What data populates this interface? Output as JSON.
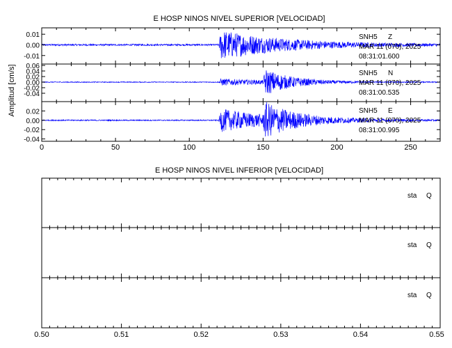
{
  "chart_data": [
    {
      "type": "line",
      "title": "E HOSP NINOS NIVEL SUPERIOR [VELOCIDAD]",
      "ylabel": "Amplitud [cm/s]",
      "xlabel": "",
      "xlim": [
        0,
        270
      ],
      "x_ticks": [
        0,
        50,
        100,
        150,
        200,
        250
      ],
      "x_tick_labels": [
        "0",
        "50",
        "100",
        "150",
        "200",
        "250"
      ],
      "line_color": "#0000ff",
      "grid": false,
      "panels": [
        {
          "station": "SNH5",
          "component": "Z",
          "date": "MAR 11 (070), 2025",
          "time": "08:31:01.600",
          "ylim": [
            -0.018,
            0.016
          ],
          "y_ticks": [
            0.01,
            0.0,
            -0.01
          ],
          "y_tick_labels": [
            "0.01",
            "0.00",
            "-0.01"
          ],
          "series": {
            "pre_event_amplitude": 0.0008,
            "events": [
              {
                "onset": 120,
                "peak_amplitude": 0.014,
                "decay_seconds": 45
              }
            ]
          }
        },
        {
          "station": "SNH5",
          "component": "N",
          "date": "MAR 11 (070), 2025",
          "time": "08:31:00.535",
          "ylim": [
            -0.07,
            0.065
          ],
          "y_ticks": [
            0.06,
            0.04,
            0.02,
            0.0,
            -0.02,
            -0.04
          ],
          "y_tick_labels": [
            "0.06",
            "0.04",
            "0.02",
            "0.00",
            "-0.02",
            "-0.04"
          ],
          "series": {
            "pre_event_amplitude": 0.0015,
            "events": [
              {
                "onset": 120,
                "peak_amplitude": 0.012,
                "decay_seconds": 40
              },
              {
                "onset": 150,
                "peak_amplitude": 0.045,
                "decay_seconds": 18
              }
            ]
          }
        },
        {
          "station": "SNH5",
          "component": "E",
          "date": "MAR 11 (070), 2025",
          "time": "08:31:00.995",
          "ylim": [
            -0.045,
            0.04
          ],
          "y_ticks": [
            0.02,
            0.0,
            -0.02,
            -0.04
          ],
          "y_tick_labels": [
            "0.02",
            "0.00",
            "-0.02",
            "-0.04"
          ],
          "series": {
            "pre_event_amplitude": 0.0012,
            "events": [
              {
                "onset": 120,
                "peak_amplitude": 0.025,
                "decay_seconds": 40
              },
              {
                "onset": 150,
                "peak_amplitude": 0.03,
                "decay_seconds": 20
              }
            ]
          }
        }
      ]
    },
    {
      "type": "line",
      "title": "E HOSP NINOS NIVEL INFERIOR [VELOCIDAD]",
      "ylabel": "",
      "xlabel": "",
      "xlim": [
        0.5,
        0.55
      ],
      "x_ticks": [
        0.5,
        0.51,
        0.52,
        0.53,
        0.54,
        0.55
      ],
      "x_tick_labels": [
        "0.50",
        "0.51",
        "0.52",
        "0.53",
        "0.54",
        "0.55"
      ],
      "grid": false,
      "panels": [
        {
          "station": "sta",
          "component": "Q"
        },
        {
          "station": "sta",
          "component": "Q"
        },
        {
          "station": "sta",
          "component": "Q"
        }
      ]
    }
  ]
}
